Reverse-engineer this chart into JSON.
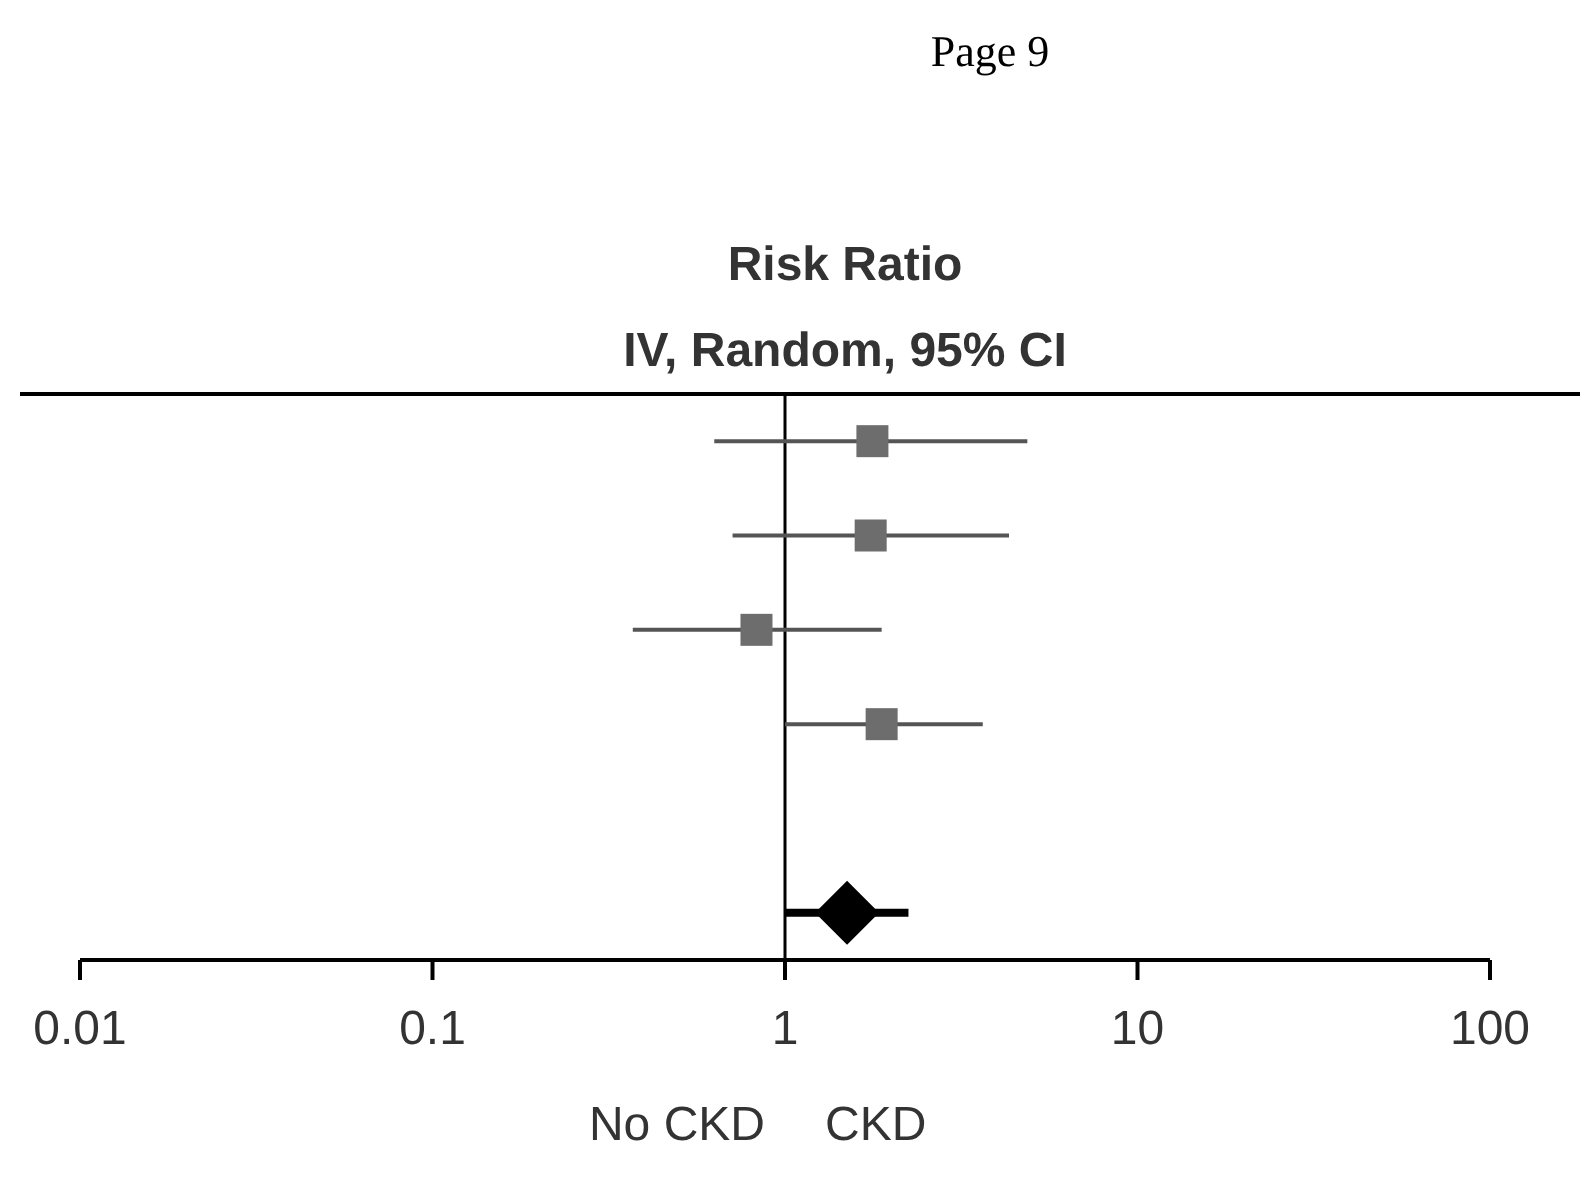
{
  "chart_data": {
    "type": "scatter",
    "orientation": "horizontal",
    "title": "Risk Ratio",
    "subtitle": "IV, Random, 95% CI",
    "annotations": [
      "Page 9",
      "No CKD",
      "CKD"
    ],
    "categories": [
      null,
      null,
      null,
      null,
      null,
      null
    ],
    "series": [
      {
        "marker": "square",
        "color": "#6d6d6d",
        "values": [
          1.77,
          1.75,
          0.83,
          1.88,
          null,
          null
        ],
        "errors": [
          [
            0.63,
            4.87
          ],
          [
            0.71,
            4.32
          ],
          [
            0.37,
            1.88
          ],
          [
            1.0,
            3.64
          ],
          null,
          null
        ]
      },
      {
        "marker": "diamond",
        "color": "#000000",
        "values": [
          null,
          null,
          null,
          null,
          null,
          1.5
        ],
        "errors": [
          null,
          null,
          null,
          null,
          null,
          [
            1.0,
            2.24
          ]
        ]
      }
    ],
    "log": "x",
    "xlim": [
      0.01,
      100
    ],
    "xticks": [
      0.01,
      0.1,
      1,
      10,
      100
    ],
    "ref_lines": [
      {
        "axis": "x",
        "value": 1,
        "color": "#000000"
      }
    ],
    "grid": false
  }
}
